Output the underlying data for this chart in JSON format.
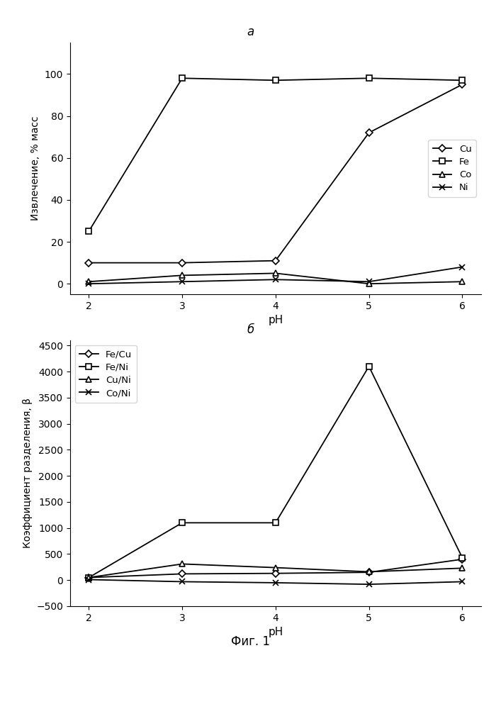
{
  "ph": [
    2,
    3,
    4,
    5,
    6
  ],
  "top_title": "а",
  "bottom_title": "б",
  "fig_caption": "Фиг. 1",
  "plot_a": {
    "Cu": [
      10,
      10,
      11,
      72,
      95
    ],
    "Fe": [
      25,
      98,
      97,
      98,
      97
    ],
    "Co": [
      1,
      4,
      5,
      0,
      1
    ],
    "Ni": [
      0,
      1,
      2,
      1,
      8
    ],
    "ylabel": "Извлечение, % масс",
    "xlabel": "pH",
    "ylim": [
      -5,
      115
    ],
    "yticks": [
      0,
      20,
      40,
      60,
      80,
      100
    ],
    "legend_labels": [
      "Cu",
      "Fe",
      "Co",
      "Ni"
    ],
    "markers": [
      "D",
      "s",
      "^",
      "x"
    ]
  },
  "plot_b": {
    "FeCu": [
      50,
      120,
      130,
      150,
      400
    ],
    "FeNi": [
      50,
      1100,
      1100,
      4100,
      430
    ],
    "CuNi": [
      50,
      310,
      240,
      160,
      230
    ],
    "CoNi": [
      10,
      -30,
      -50,
      -80,
      -30
    ],
    "ylabel": "Коэффициент разделения, β",
    "xlabel": "pH",
    "ylim": [
      -500,
      4600
    ],
    "yticks": [
      -500,
      0,
      500,
      1000,
      1500,
      2000,
      2500,
      3000,
      3500,
      4000,
      4500
    ],
    "legend_labels": [
      "Fe/Cu",
      "Fe/Ni",
      "Cu/Ni",
      "Co/Ni"
    ],
    "markers": [
      "D",
      "s",
      "^",
      "x"
    ]
  }
}
